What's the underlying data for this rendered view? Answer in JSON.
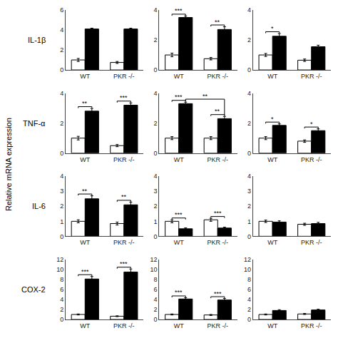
{
  "ylabel": "Relative mRNA expression",
  "row_labels": [
    "IL-1β",
    "TNF-α",
    "IL-6",
    "COX-2"
  ],
  "chart_data": [
    {
      "type": "bar",
      "categories": [
        "WT",
        "PKR -/-"
      ],
      "ylim": [
        0,
        6
      ],
      "yticks": [
        0,
        2,
        4,
        6
      ],
      "grid": false,
      "series": [
        {
          "color": "white",
          "values": [
            1.0,
            0.75
          ],
          "errors": [
            0.15,
            0.1
          ]
        },
        {
          "color": "black",
          "values": [
            4.1,
            4.1
          ],
          "errors": [
            0.08,
            0.08
          ]
        }
      ],
      "annotations": []
    },
    {
      "type": "bar",
      "categories": [
        "WT",
        "PKR -/-"
      ],
      "ylim": [
        0,
        4
      ],
      "yticks": [
        0,
        2,
        4
      ],
      "grid": false,
      "series": [
        {
          "color": "white",
          "values": [
            1.0,
            0.75
          ],
          "errors": [
            0.12,
            0.08
          ]
        },
        {
          "color": "black",
          "values": [
            3.5,
            2.7
          ],
          "errors": [
            0.1,
            0.18
          ]
        }
      ],
      "annotations": [
        {
          "text": "***",
          "categories": [
            "WT"
          ]
        },
        {
          "text": "**",
          "categories": [
            "PKR -/-"
          ]
        }
      ]
    },
    {
      "type": "bar",
      "categories": [
        "WT",
        "PKR -/-"
      ],
      "ylim": [
        0,
        4
      ],
      "yticks": [
        0,
        2,
        4
      ],
      "grid": false,
      "series": [
        {
          "color": "white",
          "values": [
            1.0,
            0.65
          ],
          "errors": [
            0.1,
            0.08
          ]
        },
        {
          "color": "black",
          "values": [
            2.25,
            1.55
          ],
          "errors": [
            0.18,
            0.1
          ]
        }
      ],
      "annotations": [
        {
          "text": "*",
          "categories": [
            "WT"
          ]
        }
      ]
    },
    {
      "type": "bar",
      "categories": [
        "WT",
        "PKR -/-"
      ],
      "ylim": [
        0,
        4
      ],
      "yticks": [
        0,
        2,
        4
      ],
      "grid": false,
      "series": [
        {
          "color": "white",
          "values": [
            1.0,
            0.5
          ],
          "errors": [
            0.12,
            0.07
          ]
        },
        {
          "color": "black",
          "values": [
            2.8,
            3.2
          ],
          "errors": [
            0.18,
            0.15
          ]
        }
      ],
      "annotations": [
        {
          "text": "**",
          "categories": [
            "WT"
          ]
        },
        {
          "text": "***",
          "categories": [
            "PKR -/-"
          ]
        }
      ]
    },
    {
      "type": "bar",
      "categories": [
        "WT",
        "PKR -/-"
      ],
      "ylim": [
        0,
        4
      ],
      "yticks": [
        0,
        2,
        4
      ],
      "grid": false,
      "series": [
        {
          "color": "white",
          "values": [
            1.0,
            1.0
          ],
          "errors": [
            0.1,
            0.1
          ]
        },
        {
          "color": "black",
          "values": [
            3.3,
            2.3
          ],
          "errors": [
            0.1,
            0.15
          ]
        }
      ],
      "annotations": [
        {
          "text": "***",
          "categories": [
            "WT"
          ]
        },
        {
          "text": "**",
          "categories": [
            "PKR -/-"
          ]
        },
        {
          "text": "**",
          "categories": [
            "WT",
            "PKR -/-"
          ]
        }
      ]
    },
    {
      "type": "bar",
      "categories": [
        "WT",
        "PKR -/-"
      ],
      "ylim": [
        0,
        4
      ],
      "yticks": [
        0,
        2,
        4
      ],
      "grid": false,
      "series": [
        {
          "color": "white",
          "values": [
            1.0,
            0.8
          ],
          "errors": [
            0.1,
            0.08
          ]
        },
        {
          "color": "black",
          "values": [
            1.85,
            1.5
          ],
          "errors": [
            0.1,
            0.12
          ]
        }
      ],
      "annotations": [
        {
          "text": "*",
          "categories": [
            "WT"
          ]
        },
        {
          "text": "*",
          "categories": [
            "PKR -/-"
          ]
        }
      ]
    },
    {
      "type": "bar",
      "categories": [
        "WT",
        "PKR -/-"
      ],
      "ylim": [
        0,
        4
      ],
      "yticks": [
        0,
        1,
        2,
        3,
        4
      ],
      "grid": false,
      "series": [
        {
          "color": "white",
          "values": [
            1.0,
            0.85
          ],
          "errors": [
            0.1,
            0.1
          ]
        },
        {
          "color": "black",
          "values": [
            2.5,
            2.1
          ],
          "errors": [
            0.2,
            0.18
          ]
        }
      ],
      "annotations": [
        {
          "text": "**",
          "categories": [
            "WT"
          ]
        },
        {
          "text": "**",
          "categories": [
            "PKR -/-"
          ]
        }
      ]
    },
    {
      "type": "bar",
      "categories": [
        "WT",
        "PKR -/-"
      ],
      "ylim": [
        0,
        4
      ],
      "yticks": [
        0,
        1,
        2,
        3,
        4
      ],
      "grid": false,
      "series": [
        {
          "color": "white",
          "values": [
            1.0,
            1.1
          ],
          "errors": [
            0.1,
            0.1
          ]
        },
        {
          "color": "black",
          "values": [
            0.5,
            0.55
          ],
          "errors": [
            0.06,
            0.06
          ]
        }
      ],
      "annotations": [
        {
          "text": "***",
          "categories": [
            "WT"
          ]
        },
        {
          "text": "***",
          "categories": [
            "PKR -/-"
          ]
        }
      ]
    },
    {
      "type": "bar",
      "categories": [
        "WT",
        "PKR -/-"
      ],
      "ylim": [
        0,
        4
      ],
      "yticks": [
        0,
        1,
        2,
        3,
        4
      ],
      "grid": false,
      "series": [
        {
          "color": "white",
          "values": [
            1.0,
            0.8
          ],
          "errors": [
            0.08,
            0.07
          ]
        },
        {
          "color": "black",
          "values": [
            0.95,
            0.85
          ],
          "errors": [
            0.08,
            0.08
          ]
        }
      ],
      "annotations": []
    },
    {
      "type": "bar",
      "categories": [
        "WT",
        "PKR -/-"
      ],
      "ylim": [
        0,
        12
      ],
      "yticks": [
        0,
        2,
        4,
        6,
        8,
        10,
        12
      ],
      "grid": false,
      "series": [
        {
          "color": "white",
          "values": [
            1.0,
            0.65
          ],
          "errors": [
            0.1,
            0.08
          ]
        },
        {
          "color": "black",
          "values": [
            8.1,
            9.5
          ],
          "errors": [
            0.5,
            0.6
          ]
        }
      ],
      "annotations": [
        {
          "text": "***",
          "categories": [
            "WT"
          ]
        },
        {
          "text": "***",
          "categories": [
            "PKR -/-"
          ]
        }
      ]
    },
    {
      "type": "bar",
      "categories": [
        "WT",
        "PKR -/-"
      ],
      "ylim": [
        0,
        12
      ],
      "yticks": [
        0,
        2,
        4,
        6,
        8,
        10,
        12
      ],
      "grid": false,
      "series": [
        {
          "color": "white",
          "values": [
            1.0,
            0.9
          ],
          "errors": [
            0.1,
            0.1
          ]
        },
        {
          "color": "black",
          "values": [
            4.1,
            3.9
          ],
          "errors": [
            0.25,
            0.3
          ]
        }
      ],
      "annotations": [
        {
          "text": "***",
          "categories": [
            "WT"
          ]
        },
        {
          "text": "***",
          "categories": [
            "PKR -/-"
          ]
        }
      ]
    },
    {
      "type": "bar",
      "categories": [
        "WT",
        "PKR -/-"
      ],
      "ylim": [
        0,
        12
      ],
      "yticks": [
        0,
        2,
        4,
        6,
        8,
        10,
        12
      ],
      "grid": false,
      "series": [
        {
          "color": "white",
          "values": [
            1.0,
            1.1
          ],
          "errors": [
            0.1,
            0.1
          ]
        },
        {
          "color": "black",
          "values": [
            1.8,
            1.9
          ],
          "errors": [
            0.15,
            0.15
          ]
        }
      ],
      "annotations": []
    }
  ]
}
